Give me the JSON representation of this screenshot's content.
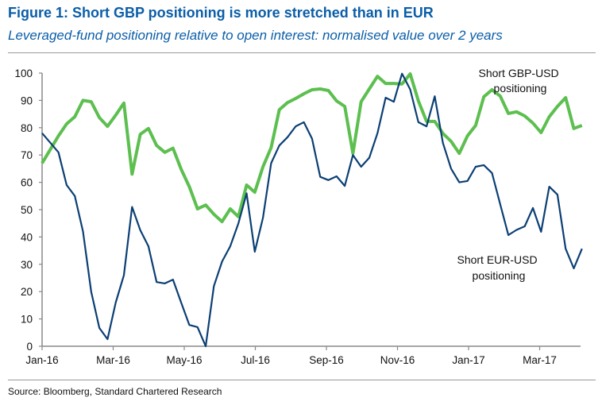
{
  "chart_data": {
    "type": "line",
    "title": "Figure 1: Short GBP positioning is more stretched than in EUR",
    "subtitle": "Leveraged-fund positioning relative to open interest: normalised value over 2 years",
    "xlabel": "",
    "ylabel": "",
    "ylim": [
      0,
      100
    ],
    "yticks": [
      "0",
      "10",
      "20",
      "30",
      "40",
      "50",
      "60",
      "70",
      "80",
      "90",
      "100"
    ],
    "xticks": [
      "Jan-16",
      "Mar-16",
      "May-16",
      "Jul-16",
      "Sep-16",
      "Nov-16",
      "Jan-17",
      "Mar-17"
    ],
    "x_frequency": "weekly",
    "grid": false,
    "legend": "none",
    "series": [
      {
        "name": "Short GBP-USD positioning",
        "label_lines": [
          "Short GBP-USD",
          "positioning"
        ],
        "color": "#5cbf4f",
        "values": [
          67,
          72,
          77,
          81.4,
          84,
          90,
          89.5,
          83.7,
          80.5,
          84.6,
          89,
          63,
          77.6,
          79.7,
          73.5,
          71,
          72.5,
          64.8,
          58.4,
          50.3,
          51.7,
          48.3,
          45.6,
          50.3,
          47.4,
          59,
          56.4,
          65.7,
          72.7,
          86.6,
          89.2,
          90.7,
          92.4,
          93.9,
          94.2,
          93.6,
          89.8,
          87.8,
          70.6,
          89.5,
          94.2,
          98.8,
          96.2,
          96.2,
          96,
          99.7,
          89.8,
          82.3,
          82.3,
          77.9,
          75,
          70.6,
          77,
          80.8,
          91.3,
          93.9,
          91.6,
          85.2,
          85.8,
          84.3,
          81.7,
          78.2,
          84,
          87.8,
          91,
          79.7,
          80.8
        ]
      },
      {
        "name": "Short EUR-USD positioning",
        "label_lines": [
          "Short EUR-USD",
          "positioning"
        ],
        "color": "#0b3f74",
        "values": [
          78,
          74.5,
          71,
          59,
          55,
          42,
          20,
          6.7,
          2.6,
          16,
          26,
          51,
          42.5,
          36.6,
          23.5,
          23,
          24.4,
          16,
          7.8,
          7,
          0,
          22,
          31,
          36.6,
          45,
          56,
          34.6,
          47,
          67,
          73.5,
          76.5,
          80.5,
          82,
          76,
          62,
          60.8,
          62.2,
          58.7,
          70,
          65.7,
          69,
          78,
          91,
          89.5,
          99.8,
          94,
          82,
          80.5,
          91.5,
          74.4,
          65,
          60,
          60.5,
          65.7,
          66.3,
          63.4,
          52,
          40.7,
          42.6,
          43.9,
          50.6,
          41.9,
          58.4,
          55.5,
          35.7,
          28.5,
          35.7
        ]
      }
    ],
    "source": "Source: Bloomberg, Standard Chartered Research"
  }
}
